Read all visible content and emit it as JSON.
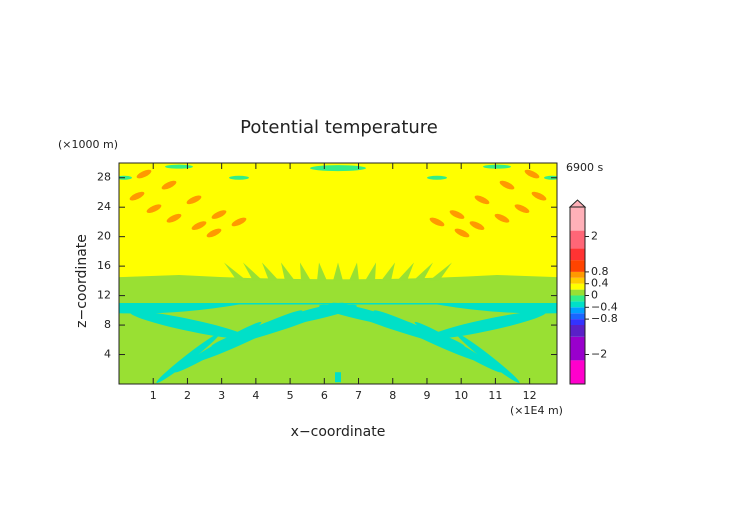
{
  "chart_data": {
    "type": "contour",
    "title": "Potential temperature",
    "x_label": "x−coordinate",
    "y_label": "z−coordinate",
    "x_unit": "(×1E4 m)",
    "y_unit": "(×1000 m)",
    "time_label": "6900 s",
    "xlim": [
      0,
      12.8
    ],
    "xticks": [
      1,
      2,
      3,
      4,
      5,
      6,
      7,
      8,
      9,
      10,
      11,
      12
    ],
    "ylim": [
      0,
      30
    ],
    "yticks": [
      4,
      8,
      12,
      16,
      20,
      24,
      28
    ],
    "colorbar": {
      "lim": [
        -3,
        3
      ],
      "levels": [
        -3,
        -2.2,
        -1.4,
        -1,
        -0.8,
        -0.6,
        -0.4,
        -0.2,
        0,
        0.2,
        0.4,
        0.6,
        0.8,
        1.2,
        1.6,
        2.2,
        3
      ],
      "colors": [
        "#ff00cc",
        "#9900cc",
        "#5a20c8",
        "#3333ff",
        "#1a66ff",
        "#00a0ff",
        "#00e0c8",
        "#33ee88",
        "#99e033",
        "#ffff00",
        "#ffcc00",
        "#ff9900",
        "#ff4400",
        "#ff3333",
        "#ff6677",
        "#ffb0b8"
      ],
      "ticks": [
        {
          "value": 2,
          "label": "2"
        },
        {
          "value": 0.8,
          "label": "0.8"
        },
        {
          "value": 0.4,
          "label": "0.4"
        },
        {
          "value": 0,
          "label": "0"
        },
        {
          "value": -0.4,
          "label": "−0.4"
        },
        {
          "value": -0.8,
          "label": "−0.8"
        },
        {
          "value": -2,
          "label": "−2"
        }
      ]
    }
  }
}
